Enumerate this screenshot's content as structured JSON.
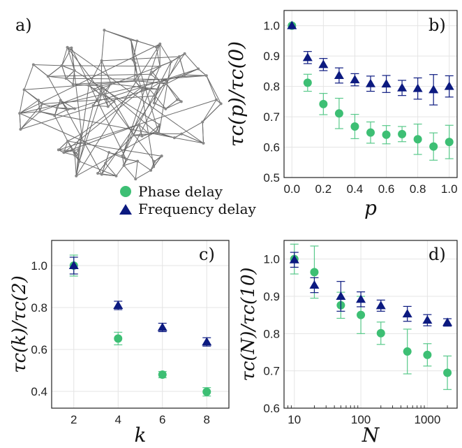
{
  "colors": {
    "phase": "#3dbf74",
    "phase_err": "#58c98a",
    "freq": "#0c1a80",
    "network_line": "#6a6a6a",
    "network_node": "#888888"
  },
  "legend": [
    {
      "label": "Phase delay",
      "marker": "circle"
    },
    {
      "label": "Frequency delay",
      "marker": "triangle"
    }
  ],
  "panels": {
    "a": {
      "label": "a)"
    },
    "b": {
      "label": "b)"
    },
    "c": {
      "label": "c)"
    },
    "d": {
      "label": "d)"
    }
  },
  "chart_data": [
    {
      "panel": "b",
      "type": "scatter",
      "xlabel": "p",
      "ylabel": "τc(p)/τc(0)",
      "xlim": [
        -0.05,
        1.05
      ],
      "ylim": [
        0.5,
        1.05
      ],
      "xticks": [
        "0.0",
        "0.2",
        "0.4",
        "0.6",
        "0.8",
        "1.0"
      ],
      "yticks": [
        "0.5",
        "0.6",
        "0.7",
        "0.8",
        "0.9",
        "1.0"
      ],
      "grid": true,
      "x": [
        0.0,
        0.1,
        0.2,
        0.3,
        0.4,
        0.5,
        0.6,
        0.7,
        0.8,
        0.9,
        1.0
      ],
      "series": [
        {
          "name": "Phase delay",
          "values": [
            1.0,
            0.812,
            0.742,
            0.711,
            0.668,
            0.648,
            0.641,
            0.643,
            0.626,
            0.602,
            0.617
          ],
          "err": [
            0.0,
            0.028,
            0.035,
            0.05,
            0.04,
            0.035,
            0.03,
            0.025,
            0.05,
            0.045,
            0.055
          ]
        },
        {
          "name": "Frequency delay",
          "values": [
            1.0,
            0.895,
            0.872,
            0.836,
            0.822,
            0.809,
            0.808,
            0.795,
            0.793,
            0.789,
            0.8
          ],
          "err": [
            0.0,
            0.02,
            0.02,
            0.025,
            0.02,
            0.025,
            0.028,
            0.025,
            0.035,
            0.05,
            0.035
          ]
        }
      ]
    },
    {
      "panel": "c",
      "type": "scatter",
      "xlabel": "k",
      "ylabel": "τc(k)/τc(2)",
      "xlim": [
        1.0,
        9.0
      ],
      "ylim": [
        0.32,
        1.12
      ],
      "xticks": [
        "2",
        "4",
        "6",
        "8"
      ],
      "yticks": [
        "0.4",
        "0.6",
        "0.8",
        "1.0"
      ],
      "grid": true,
      "x": [
        2,
        4,
        6,
        8
      ],
      "series": [
        {
          "name": "Phase delay",
          "values": [
            1.0,
            0.652,
            0.48,
            0.398
          ],
          "err": [
            0.05,
            0.03,
            0.015,
            0.02
          ]
        },
        {
          "name": "Frequency delay",
          "values": [
            1.0,
            0.81,
            0.705,
            0.636
          ],
          "err": [
            0.04,
            0.02,
            0.02,
            0.02
          ]
        }
      ]
    },
    {
      "panel": "d",
      "type": "scatter",
      "xlabel": "N",
      "ylabel": "τc(N)/τc(10)",
      "xscale": "log",
      "xlim": [
        7,
        2800
      ],
      "ylim": [
        0.6,
        1.05
      ],
      "xticks": [
        "10",
        "100",
        "1000"
      ],
      "yticks": [
        "0.6",
        "0.7",
        "0.8",
        "0.9",
        "1.0"
      ],
      "grid": true,
      "x": [
        10,
        20,
        50,
        100,
        200,
        500,
        1000,
        2000
      ],
      "series": [
        {
          "name": "Phase delay",
          "values": [
            1.0,
            0.965,
            0.876,
            0.85,
            0.801,
            0.752,
            0.743,
            0.695
          ],
          "err": [
            0.04,
            0.07,
            0.035,
            0.05,
            0.03,
            0.06,
            0.03,
            0.045
          ]
        },
        {
          "name": "Frequency delay",
          "values": [
            0.998,
            0.93,
            0.9,
            0.892,
            0.875,
            0.853,
            0.836,
            0.83
          ],
          "err": [
            0.02,
            0.02,
            0.04,
            0.02,
            0.015,
            0.02,
            0.015,
            0.01
          ]
        }
      ]
    }
  ]
}
